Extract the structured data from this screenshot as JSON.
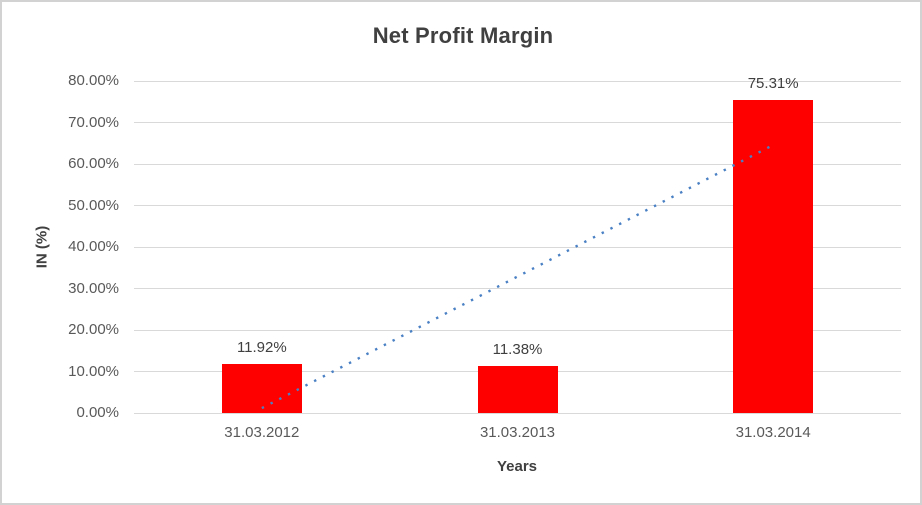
{
  "chart_data": {
    "type": "bar",
    "title": "Net Profit Margin",
    "xlabel": "Years",
    "ylabel": "IN (%)",
    "categories": [
      "31.03.2012",
      "31.03.2013",
      "31.03.2014"
    ],
    "values": [
      11.92,
      11.38,
      75.31
    ],
    "data_labels": [
      "11.92%",
      "11.38%",
      "75.31%"
    ],
    "ylim": [
      0,
      80
    ],
    "ytick_step": 10,
    "ytick_labels": [
      "0.00%",
      "10.00%",
      "20.00%",
      "30.00%",
      "40.00%",
      "50.00%",
      "60.00%",
      "70.00%",
      "80.00%"
    ],
    "grid": true,
    "legend": "none",
    "bar_color": "#ff0000",
    "trendline": {
      "type": "linear",
      "style": "dotted",
      "color": "#4a80c4",
      "start_category": "31.03.2012",
      "end_category": "31.03.2014",
      "start_value": 1.18,
      "end_value": 64.57
    }
  },
  "colors": {
    "background": "#ffffff",
    "chart_border": "#d2d2d2",
    "gridline": "#d9d9d9",
    "title_text": "#404040",
    "tick_text": "#595959",
    "bar": "#ff0000",
    "trendline": "#4a80c4"
  }
}
